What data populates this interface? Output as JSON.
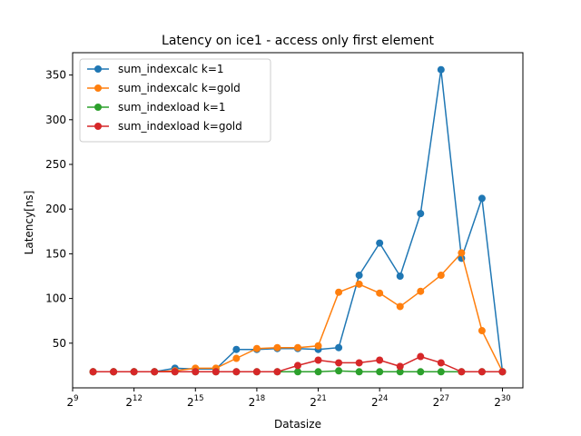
{
  "chart_data": {
    "type": "line",
    "title": "Latency on ice1 - access only first element",
    "xlabel": "Datasize",
    "ylabel": "Latency[ns]",
    "x_scale": "log2",
    "x": [
      "2^10",
      "2^11",
      "2^12",
      "2^13",
      "2^14",
      "2^15",
      "2^16",
      "2^17",
      "2^18",
      "2^19",
      "2^20",
      "2^21",
      "2^22",
      "2^23",
      "2^24",
      "2^25",
      "2^26",
      "2^27",
      "2^28",
      "2^29",
      "2^30"
    ],
    "x_exponents": [
      10,
      11,
      12,
      13,
      14,
      15,
      16,
      17,
      18,
      19,
      20,
      21,
      22,
      23,
      24,
      25,
      26,
      27,
      28,
      29,
      30
    ],
    "xlim_exponents": [
      9,
      31
    ],
    "ylim": [
      0,
      375
    ],
    "x_ticks": [
      {
        "base": "2",
        "exp": "9",
        "value": 9
      },
      {
        "base": "2",
        "exp": "12",
        "value": 12
      },
      {
        "base": "2",
        "exp": "15",
        "value": 15
      },
      {
        "base": "2",
        "exp": "18",
        "value": 18
      },
      {
        "base": "2",
        "exp": "21",
        "value": 21
      },
      {
        "base": "2",
        "exp": "24",
        "value": 24
      },
      {
        "base": "2",
        "exp": "27",
        "value": 27
      },
      {
        "base": "2",
        "exp": "30",
        "value": 30
      }
    ],
    "y_ticks": [
      "50",
      "100",
      "150",
      "200",
      "250",
      "300",
      "350"
    ],
    "grid": false,
    "legend_position": "upper-left",
    "series": [
      {
        "name": "sum_indexcalc k=1",
        "color": "#1f77b4",
        "values": [
          18,
          18,
          18,
          18,
          22,
          21,
          21,
          43,
          43,
          44,
          44,
          43,
          45,
          126,
          162,
          125,
          195,
          356,
          145,
          212,
          18
        ]
      },
      {
        "name": "sum_indexcalc k=gold",
        "color": "#ff7f0e",
        "values": [
          18,
          18,
          18,
          18,
          19,
          22,
          22,
          33,
          44,
          45,
          45,
          47,
          107,
          116,
          106,
          91,
          108,
          126,
          151,
          64,
          18
        ]
      },
      {
        "name": "sum_indexload k=1",
        "color": "#2ca02c",
        "values": [
          18,
          18,
          18,
          18,
          18,
          18,
          18,
          18,
          18,
          18,
          18,
          18,
          19,
          18,
          18,
          18,
          18,
          18,
          18,
          18,
          18
        ]
      },
      {
        "name": "sum_indexload k=gold",
        "color": "#d62728",
        "values": [
          18,
          18,
          18,
          18,
          18,
          18,
          18,
          18,
          18,
          18,
          25,
          31,
          28,
          28,
          31,
          24,
          35,
          28,
          18,
          18,
          18
        ]
      }
    ]
  }
}
